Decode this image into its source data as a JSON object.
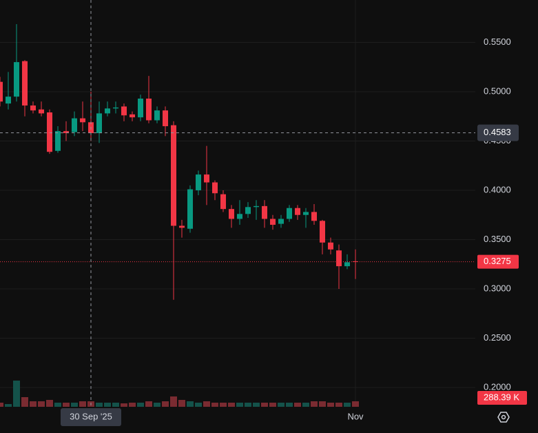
{
  "chart_data": {
    "type": "candlestick",
    "categories": [
      null,
      null,
      null,
      null,
      null,
      null,
      null,
      null,
      null,
      null,
      null,
      "30 Sep '25",
      null,
      null,
      null,
      null,
      null,
      null,
      null,
      null,
      null,
      null,
      null,
      null,
      null,
      null,
      null,
      null,
      null,
      null,
      null,
      null,
      null,
      null,
      null,
      null,
      null,
      null,
      null,
      null,
      null,
      null,
      null,
      "Nov"
    ],
    "open": [
      0.51,
      0.488,
      0.495,
      0.531,
      0.486,
      0.482,
      0.479,
      0.44,
      0.46,
      0.459,
      0.473,
      0.469,
      0.458,
      0.478,
      0.483,
      0.485,
      0.477,
      0.474,
      0.493,
      0.471,
      0.481,
      0.466,
      0.364,
      0.361,
      0.4,
      0.416,
      0.408,
      0.396,
      0.381,
      0.371,
      0.376,
      0.383,
      0.384,
      0.371,
      0.366,
      0.371,
      0.382,
      0.375,
      0.378,
      0.369,
      0.347,
      0.339,
      0.323,
      0.328
    ],
    "high": [
      0.515,
      0.52,
      0.5685,
      0.532,
      0.49,
      0.49,
      0.482,
      0.465,
      0.47,
      0.48,
      0.49,
      0.5,
      0.49,
      0.49,
      0.49,
      0.488,
      0.48,
      0.497,
      0.516,
      0.485,
      0.485,
      0.47,
      0.37,
      0.405,
      0.42,
      0.445,
      0.41,
      0.4,
      0.385,
      0.39,
      0.388,
      0.39,
      0.39,
      0.375,
      0.375,
      0.385,
      0.385,
      0.382,
      0.386,
      0.37,
      0.352,
      0.345,
      0.335,
      0.34
    ],
    "low": [
      0.485,
      0.482,
      0.49,
      0.475,
      0.478,
      0.475,
      0.437,
      0.438,
      0.45,
      0.455,
      0.46,
      0.45,
      0.448,
      0.475,
      0.478,
      0.47,
      0.47,
      0.47,
      0.468,
      0.468,
      0.455,
      0.289,
      0.352,
      0.357,
      0.395,
      0.385,
      0.39,
      0.378,
      0.362,
      0.365,
      0.372,
      0.37,
      0.362,
      0.36,
      0.362,
      0.368,
      0.37,
      0.362,
      0.365,
      0.335,
      0.335,
      0.3,
      0.32,
      0.31
    ],
    "close": [
      0.49,
      0.495,
      0.53,
      0.486,
      0.481,
      0.478,
      0.439,
      0.46,
      0.458,
      0.473,
      0.469,
      0.458,
      0.478,
      0.483,
      0.484,
      0.476,
      0.474,
      0.493,
      0.471,
      0.481,
      0.465,
      0.364,
      0.362,
      0.401,
      0.416,
      0.408,
      0.397,
      0.381,
      0.371,
      0.376,
      0.383,
      0.384,
      0.371,
      0.365,
      0.371,
      0.382,
      0.375,
      0.378,
      0.369,
      0.347,
      0.34,
      0.323,
      0.327,
      0.3275
    ],
    "volume": [
      216000,
      144000,
      1368000,
      504000,
      288000,
      288000,
      360000,
      216000,
      216000,
      216000,
      288000,
      288000,
      216000,
      216000,
      216000,
      180000,
      216000,
      216000,
      288000,
      216000,
      288000,
      540000,
      360000,
      288000,
      216000,
      288000,
      216000,
      216000,
      216000,
      216000,
      216000,
      216000,
      216000,
      216000,
      216000,
      216000,
      216000,
      216000,
      288000,
      288000,
      216000,
      216000,
      216000,
      288390
    ],
    "up_color": "#089981",
    "down_color": "#f23645",
    "up_volume_color": "#14524a",
    "down_volume_color": "#7a2b31",
    "ylim": [
      0.1804,
      0.593
    ],
    "yticks": [
      {
        "value": 0.2,
        "label": "0.2000"
      },
      {
        "value": 0.25,
        "label": "0.2500"
      },
      {
        "value": 0.3,
        "label": "0.3000"
      },
      {
        "value": 0.35,
        "label": "0.3500"
      },
      {
        "value": 0.4,
        "label": "0.4000"
      },
      {
        "value": 0.45,
        "label": "0.4500"
      },
      {
        "value": 0.5,
        "label": "0.5000"
      },
      {
        "value": 0.55,
        "label": "0.5500"
      }
    ],
    "grid": true,
    "crosshair_index": 11,
    "crosshair_price": 0.4583,
    "last_price": 0.3275,
    "last_volume_label": "288.39 K"
  }
}
